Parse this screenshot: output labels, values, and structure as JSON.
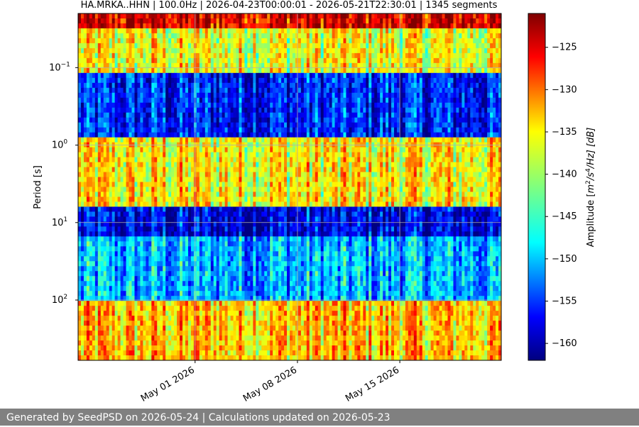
{
  "chart_data": {
    "type": "heatmap",
    "title": "HA.MRKA..HHN | 100.0Hz | 2026-04-23T00:00:01 - 2026-05-21T22:30:01 | 1345 segments",
    "xlabel": "",
    "ylabel": "Period [s]",
    "colorbar_label": "Amplitude [m²/s⁴/Hz] [dB]",
    "colorbar_label_parts": {
      "prefix": "Amplitude [",
      "unit_base": "m",
      "exp1": "2",
      "mid": "/s",
      "exp2": "4",
      "suffix": "/Hz] [dB]"
    },
    "colormap": "jet",
    "x_range": [
      "2026-04-23T00:00:01",
      "2026-05-21T22:30:01"
    ],
    "x_tick_labels": [
      "May 01 2026",
      "May 08 2026",
      "May 15 2026"
    ],
    "x_tick_dates": [
      "2026-05-01",
      "2026-05-08",
      "2026-05-15"
    ],
    "y_scale": "log",
    "y_inverted": true,
    "ylim": [
      0.02,
      600
    ],
    "y_ticks": [
      {
        "value": 0.1,
        "base": "10",
        "exp": "−1"
      },
      {
        "value": 1,
        "base": "10",
        "exp": "0"
      },
      {
        "value": 10,
        "base": "10",
        "exp": "1"
      },
      {
        "value": 100,
        "base": "10",
        "exp": "2"
      }
    ],
    "clim": [
      -162,
      -121
    ],
    "colorbar_ticks": [
      "-125",
      "-130",
      "-135",
      "-140",
      "-145",
      "-150",
      "-155",
      "-160"
    ],
    "colorbar_tick_values": [
      -125,
      -130,
      -135,
      -140,
      -145,
      -150,
      -155,
      -160
    ],
    "grid": true,
    "segments": 1345,
    "bands": [
      {
        "period_range": [
          0.02,
          0.03
        ],
        "mean_db": -125
      },
      {
        "period_range": [
          0.03,
          0.12
        ],
        "mean_db": -137
      },
      {
        "period_range": [
          0.12,
          0.8
        ],
        "mean_db": -156
      },
      {
        "period_range": [
          0.8,
          6
        ],
        "mean_db": -136
      },
      {
        "period_range": [
          6,
          15
        ],
        "mean_db": -158
      },
      {
        "period_range": [
          15,
          100
        ],
        "mean_db": -150
      },
      {
        "period_range": [
          100,
          600
        ],
        "mean_db": -134
      }
    ]
  },
  "footer": {
    "text": "Generated by SeedPSD on 2026-05-24 | Calculations updated on 2026-05-23"
  },
  "colors": {
    "footer_bg": "#808080",
    "footer_text": "#ffffff",
    "grid": "#b0b0b0"
  }
}
